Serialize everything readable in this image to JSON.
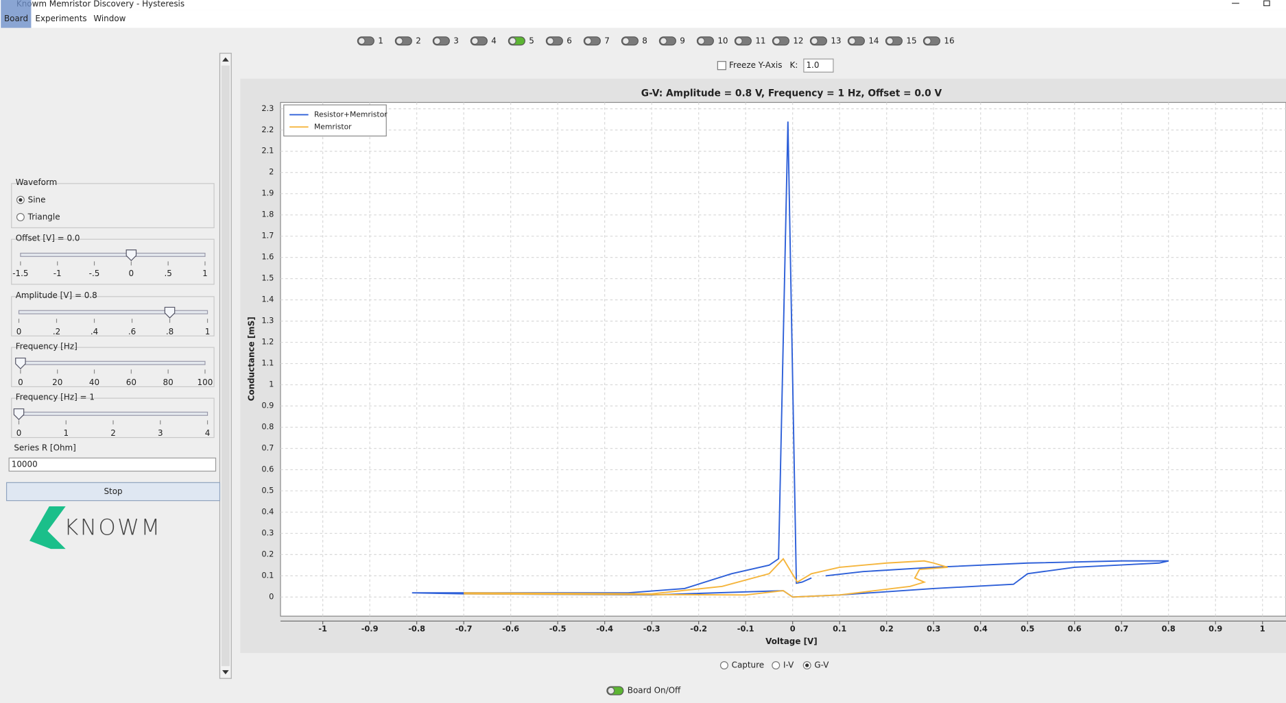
{
  "window": {
    "title": "Knowm Memristor Discovery - Hysteresis",
    "menu": [
      "Board",
      "Experiments",
      "Window"
    ]
  },
  "channels": [
    {
      "label": "1",
      "on": false
    },
    {
      "label": "2",
      "on": false
    },
    {
      "label": "3",
      "on": false
    },
    {
      "label": "4",
      "on": false
    },
    {
      "label": "5",
      "on": true
    },
    {
      "label": "6",
      "on": false
    },
    {
      "label": "7",
      "on": false
    },
    {
      "label": "8",
      "on": false
    },
    {
      "label": "9",
      "on": false
    },
    {
      "label": "10",
      "on": false
    },
    {
      "label": "11",
      "on": false
    },
    {
      "label": "12",
      "on": false
    },
    {
      "label": "13",
      "on": false
    },
    {
      "label": "14",
      "on": false
    },
    {
      "label": "15",
      "on": false
    },
    {
      "label": "16",
      "on": false
    }
  ],
  "freeze": {
    "label": "Freeze Y-Axis",
    "k_label": "K:",
    "k_value": "1.0"
  },
  "sidebar": {
    "waveform": {
      "title": "Waveform",
      "options": [
        {
          "label": "Sine",
          "selected": true
        },
        {
          "label": "Triangle",
          "selected": false
        }
      ]
    },
    "sliders": [
      {
        "title": "Offset [V] = 0.0",
        "value": 0,
        "ticks": [
          {
            "value": -1.5,
            "label": "-1.5"
          },
          {
            "value": -1,
            "label": "-1"
          },
          {
            "value": -0.5,
            "label": "-.5"
          },
          {
            "value": 0,
            "label": "0"
          },
          {
            "value": 0.5,
            "label": ".5"
          },
          {
            "value": 1,
            "label": "1"
          }
        ]
      },
      {
        "title": "Amplitude [V] = 0.8",
        "value": 0.8,
        "ticks": [
          {
            "value": 0,
            "label": "0"
          },
          {
            "value": 0.2,
            "label": ".2"
          },
          {
            "value": 0.4,
            "label": ".4"
          },
          {
            "value": 0.6,
            "label": ".6"
          },
          {
            "value": 0.8,
            "label": ".8"
          },
          {
            "value": 1,
            "label": "1"
          }
        ]
      },
      {
        "title": "Frequency [Hz]",
        "value": 0,
        "ticks": [
          {
            "value": 0,
            "label": "0"
          },
          {
            "value": 20,
            "label": "20"
          },
          {
            "value": 40,
            "label": "40"
          },
          {
            "value": 60,
            "label": "60"
          },
          {
            "value": 80,
            "label": "80"
          },
          {
            "value": 100,
            "label": "100"
          }
        ]
      },
      {
        "title": "Frequency [Hz] = 1",
        "value": 0,
        "ticks": [
          {
            "value": 0,
            "label": "0"
          },
          {
            "value": 1,
            "label": "1"
          },
          {
            "value": 2,
            "label": "2"
          },
          {
            "value": 3,
            "label": "3"
          },
          {
            "value": 4,
            "label": "4"
          }
        ]
      }
    ],
    "series_r": {
      "label": "Series R [Ohm]",
      "value": "10000"
    },
    "button": "Stop",
    "logo": "KNOWM"
  },
  "chart": {
    "type": "line",
    "title": "G-V: Amplitude = 0.8 V, Frequency = 1 Hz, Offset = 0.0 V",
    "x_label": "Voltage [V]",
    "y_label": "Conductance [mS]",
    "grid": true,
    "legend": "upper left",
    "xlim": [
      -1.09,
      1.05
    ],
    "ylim": [
      -0.09,
      2.33
    ],
    "xticks": [
      -1,
      -0.9,
      -0.8,
      -0.7,
      -0.6,
      -0.5,
      -0.4,
      -0.3,
      -0.2,
      -0.1,
      0,
      0.1,
      0.2,
      0.3,
      0.4,
      0.5,
      0.6,
      0.7,
      0.8,
      0.9,
      1
    ],
    "yticks": [
      0,
      0.1,
      0.2,
      0.3,
      0.4,
      0.5,
      0.6,
      0.7,
      0.8,
      0.9,
      1,
      1.1,
      1.2,
      1.3,
      1.4,
      1.5,
      1.6,
      1.7,
      1.8,
      1.9,
      2,
      2.1,
      2.2,
      2.3
    ],
    "series": [
      {
        "name": "Resistor+Memristor",
        "color": "#2d5fd8",
        "x": [
          -0.81,
          -0.7,
          -0.35,
          -0.23,
          -0.13,
          -0.05,
          -0.03,
          -0.01,
          0.008,
          0.02,
          0.04,
          null,
          0.07,
          0.15,
          0.3,
          0.5,
          0.7,
          0.78,
          0.8,
          0.78,
          0.6,
          0.5,
          0.47,
          0.3,
          0.1,
          0,
          -0.02,
          -0.3,
          -0.7,
          -0.81
        ],
        "y": [
          0.02,
          0.02,
          0.02,
          0.04,
          0.11,
          0.15,
          0.18,
          2.24,
          0.065,
          0.07,
          0.09,
          null,
          0.1,
          0.12,
          0.14,
          0.16,
          0.17,
          0.17,
          0.17,
          0.16,
          0.14,
          0.11,
          0.06,
          0.04,
          0.01,
          0,
          0.03,
          0.01,
          0.015,
          0.02
        ]
      },
      {
        "name": "Memristor",
        "color": "#f5b53c",
        "x": [
          -0.7,
          -0.3,
          -0.15,
          -0.05,
          -0.02,
          0.01,
          0.04,
          0.1,
          0.2,
          0.28,
          0.3,
          0.33,
          0.27,
          0.26,
          0.28,
          0.25,
          0.1,
          0,
          -0.02,
          -0.1,
          -0.7
        ],
        "y": [
          0.02,
          0.015,
          0.05,
          0.11,
          0.18,
          0.07,
          0.11,
          0.14,
          0.16,
          0.17,
          0.16,
          0.14,
          0.13,
          0.09,
          0.07,
          0.05,
          0.01,
          0,
          0.03,
          0.01,
          0.015
        ]
      }
    ]
  },
  "view_modes": [
    {
      "label": "Capture",
      "selected": false
    },
    {
      "label": "I-V",
      "selected": false
    },
    {
      "label": "G-V",
      "selected": true
    }
  ],
  "board_toggle": {
    "label": "Board On/Off",
    "on": true
  }
}
